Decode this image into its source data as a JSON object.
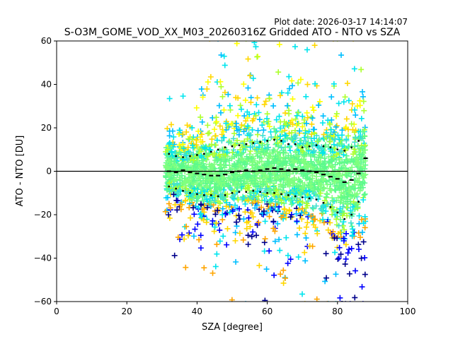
{
  "chart_data": {
    "type": "scatter",
    "title": "S-O3M_GOME_VOD_XX_M03_20260316Z Gridded ATO - NTO vs SZA",
    "plot_date": "Plot date: 2026-03-17 14:14:07",
    "xlabel": "SZA [degree]",
    "ylabel": "ATO - NTO [DU]",
    "xlim": [
      0,
      100
    ],
    "ylim": [
      -60,
      60
    ],
    "xticks": [
      "0",
      "20",
      "40",
      "60",
      "80",
      "100"
    ],
    "yticks": [
      "−60",
      "−40",
      "−20",
      "0",
      "20",
      "40",
      "60"
    ],
    "xtick_values": [
      0,
      20,
      40,
      60,
      80,
      100
    ],
    "ytick_values": [
      -60,
      -40,
      -20,
      0,
      20,
      40,
      60
    ],
    "reference_line_y": 0,
    "scatter_x_range": [
      31,
      88
    ],
    "scatter_colors": [
      "#00008b",
      "#0000ff",
      "#00bfff",
      "#00e5ee",
      "#40e0d0",
      "#5cfa8c",
      "#7fff7f",
      "#adff2f",
      "#ffff00",
      "#ffd700",
      "#ffa500"
    ],
    "series": [
      {
        "name": "mean",
        "x": [
          32,
          34,
          36,
          38,
          40,
          42,
          44,
          46,
          48,
          50,
          52,
          54,
          56,
          58,
          60,
          62,
          64,
          66,
          68,
          70,
          72,
          74,
          76,
          78,
          80,
          82,
          84,
          86,
          88
        ],
        "values": [
          0,
          -0.5,
          0.5,
          -0.5,
          -1,
          -1.5,
          -2,
          -2,
          -1.5,
          -0.5,
          0,
          0.5,
          0,
          0.5,
          1,
          1.5,
          1,
          0.5,
          1,
          0.5,
          0,
          -0.5,
          -1.5,
          -2.5,
          -3.5,
          -5,
          -4,
          -1,
          6
        ]
      },
      {
        "name": "upper",
        "x": [
          32,
          34,
          36,
          38,
          40,
          42,
          44,
          46,
          48,
          50,
          52,
          54,
          56,
          58,
          60,
          62,
          64,
          66,
          68,
          70,
          72,
          74,
          76,
          78,
          80,
          82,
          84,
          86
        ],
        "values": [
          8,
          7,
          6.5,
          7,
          7.5,
          8,
          9,
          10,
          11,
          11.5,
          12,
          12.5,
          13,
          13.5,
          14,
          14.5,
          14,
          12.5,
          12.5,
          11,
          11.5,
          12,
          11.5,
          11,
          10,
          9.5,
          11,
          14
        ]
      },
      {
        "name": "lower",
        "x": [
          32,
          34,
          36,
          38,
          40,
          42,
          44,
          46,
          48,
          50,
          52,
          54,
          56,
          58,
          60,
          62,
          64,
          66,
          68,
          70,
          72,
          74,
          76,
          78,
          80,
          82,
          84,
          86
        ],
        "values": [
          -7,
          -8,
          -9,
          -10,
          -10.5,
          -11,
          -11,
          -11.5,
          -11,
          -10,
          -9.5,
          -9.5,
          -9,
          -9.5,
          -10,
          -10,
          -10.5,
          -11,
          -11.5,
          -12,
          -12.5,
          -13,
          -14.5,
          -16.5,
          -19,
          -22,
          -20,
          -14
        ]
      }
    ]
  }
}
